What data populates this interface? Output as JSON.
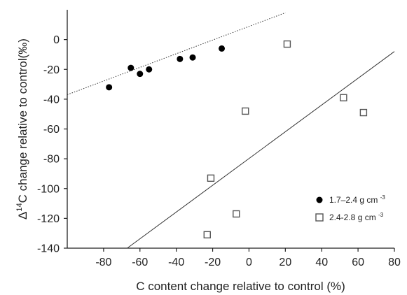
{
  "chart_data": {
    "type": "scatter",
    "title": "",
    "xlabel": "C content change relative to control (%)",
    "ylabel_prefix": "Δ",
    "ylabel_sup": "14",
    "ylabel_rest": "C change relative to control(‰)",
    "xlim": [
      -100,
      80
    ],
    "ylim": [
      -140,
      20
    ],
    "x_ticks": [
      -80,
      -60,
      -40,
      -20,
      0,
      20,
      40,
      60,
      80
    ],
    "y_ticks": [
      0,
      -20,
      -40,
      -60,
      -80,
      -100,
      -120,
      -140
    ],
    "grid": false,
    "legend_position": "lower-right",
    "series": [
      {
        "name": "1.7–2.4 g cm",
        "name_sup": "-3",
        "marker": "filled-circle",
        "color": "#000000",
        "trendline": {
          "style": "dotted",
          "x": [
            -100,
            20
          ],
          "y": [
            -37,
            18
          ]
        },
        "points": [
          {
            "x": -77,
            "y": -32
          },
          {
            "x": -65,
            "y": -19
          },
          {
            "x": -60,
            "y": -23
          },
          {
            "x": -55,
            "y": -20
          },
          {
            "x": -38,
            "y": -13
          },
          {
            "x": -31,
            "y": -12
          },
          {
            "x": -15,
            "y": -6
          }
        ]
      },
      {
        "name": "2.4-2.8 g cm",
        "name_sup": "-3",
        "marker": "open-square",
        "color": "#555555",
        "trendline": {
          "style": "solid",
          "x": [
            -67,
            80
          ],
          "y": [
            -140,
            -8
          ]
        },
        "points": [
          {
            "x": 21,
            "y": -3
          },
          {
            "x": -2,
            "y": -48
          },
          {
            "x": 52,
            "y": -39
          },
          {
            "x": 63,
            "y": -49
          },
          {
            "x": -21,
            "y": -93
          },
          {
            "x": -7,
            "y": -117
          },
          {
            "x": -23,
            "y": -131
          }
        ]
      }
    ]
  }
}
